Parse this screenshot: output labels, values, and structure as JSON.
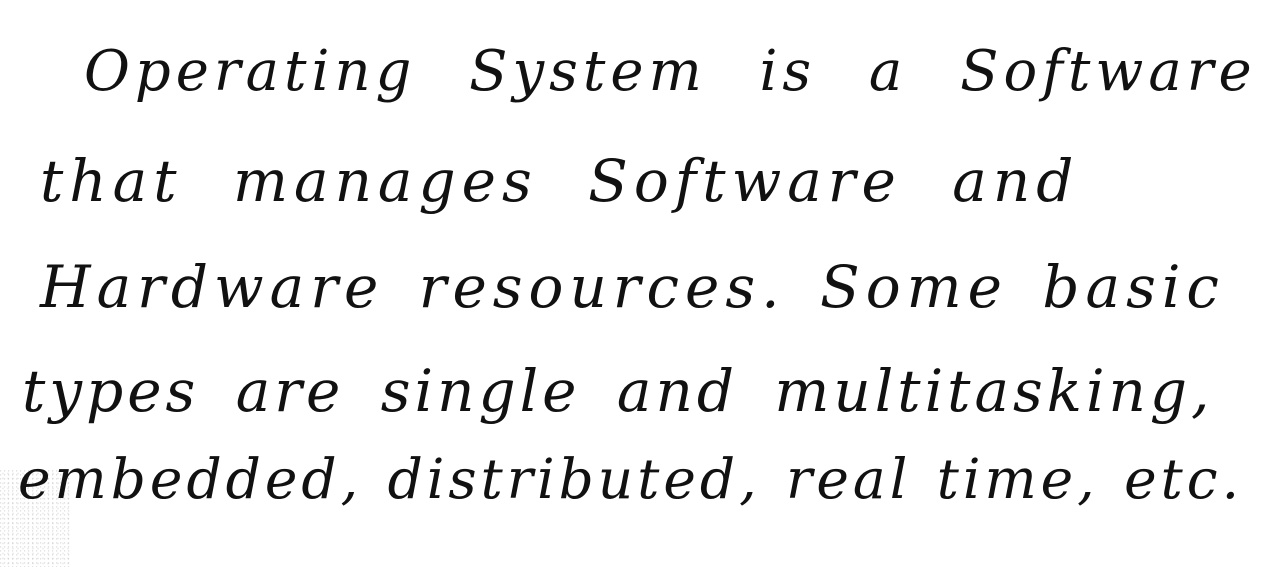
{
  "note": {
    "lines": [
      "Operating System is a Software",
      "that manages Software and",
      "Hardware resources. Some basic",
      "types are single and multitasking,",
      "embedded, distributed, real time, etc."
    ]
  }
}
